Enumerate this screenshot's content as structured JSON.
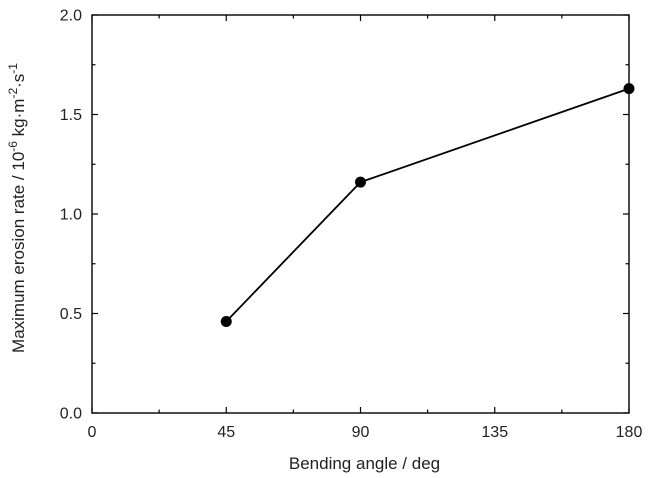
{
  "chart_data": {
    "type": "line",
    "title": "",
    "xlabel": "Bending angle / deg",
    "ylabel": {
      "parts": [
        {
          "text": "Maximum erosion rate / 10",
          "sup": false
        },
        {
          "text": "-6",
          "sup": true
        },
        {
          "text": " kg·m",
          "sup": false
        },
        {
          "text": "-2",
          "sup": true
        },
        {
          "text": "·s",
          "sup": false
        },
        {
          "text": "-1",
          "sup": true
        }
      ]
    },
    "xlim": [
      0,
      180
    ],
    "ylim": [
      0,
      2.0
    ],
    "xticks": [
      0,
      45,
      90,
      135,
      180
    ],
    "xtick_labels": [
      "0",
      "45",
      "90",
      "135",
      "180"
    ],
    "xminor": [
      22.5,
      67.5,
      112.5,
      157.5
    ],
    "yticks": [
      0,
      0.5,
      1.0,
      1.5,
      2.0
    ],
    "ytick_labels": [
      "0.0",
      "0.5",
      "1.0",
      "1.5",
      "2.0"
    ],
    "yminor": [
      0.25,
      0.75,
      1.25,
      1.75
    ],
    "grid": false,
    "legend": "none",
    "series": [
      {
        "x": [
          45,
          90,
          180
        ],
        "y": [
          0.46,
          1.16,
          1.63
        ],
        "marker": "circle",
        "color": "#000000"
      }
    ]
  }
}
